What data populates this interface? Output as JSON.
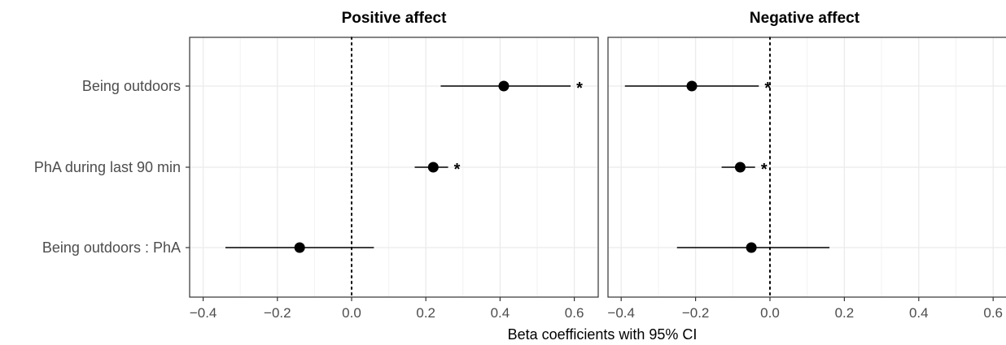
{
  "chart_data": {
    "type": "forest",
    "xlabel": "Beta coefficients with 95% CI",
    "xlim": [
      -0.43,
      0.63
    ],
    "x_ticks": [
      -0.4,
      -0.2,
      0.0,
      0.2,
      0.4,
      0.6
    ],
    "x_tick_labels": [
      "−0.4",
      "−0.2",
      "0.0",
      "0.2",
      "0.4",
      "0.6"
    ],
    "reference_line": 0,
    "grid": true,
    "categories": [
      "Being outdoors",
      "PhA during last 90 min",
      "Being outdoors : PhA"
    ],
    "facets": [
      {
        "title": "Positive affect",
        "points": [
          {
            "category": "Being outdoors",
            "estimate": 0.41,
            "ci_low": 0.24,
            "ci_high": 0.59,
            "significance": "*"
          },
          {
            "category": "PhA during last 90 min",
            "estimate": 0.22,
            "ci_low": 0.17,
            "ci_high": 0.26,
            "significance": "*"
          },
          {
            "category": "Being outdoors : PhA",
            "estimate": -0.14,
            "ci_low": -0.34,
            "ci_high": 0.06,
            "significance": ""
          }
        ]
      },
      {
        "title": "Negative affect",
        "points": [
          {
            "category": "Being outdoors",
            "estimate": -0.21,
            "ci_low": -0.39,
            "ci_high": -0.03,
            "significance": "*"
          },
          {
            "category": "PhA during last 90 min",
            "estimate": -0.08,
            "ci_low": -0.13,
            "ci_high": -0.04,
            "significance": "*"
          },
          {
            "category": "Being outdoors : PhA",
            "estimate": -0.05,
            "ci_low": -0.25,
            "ci_high": 0.16,
            "significance": ""
          }
        ]
      }
    ]
  }
}
